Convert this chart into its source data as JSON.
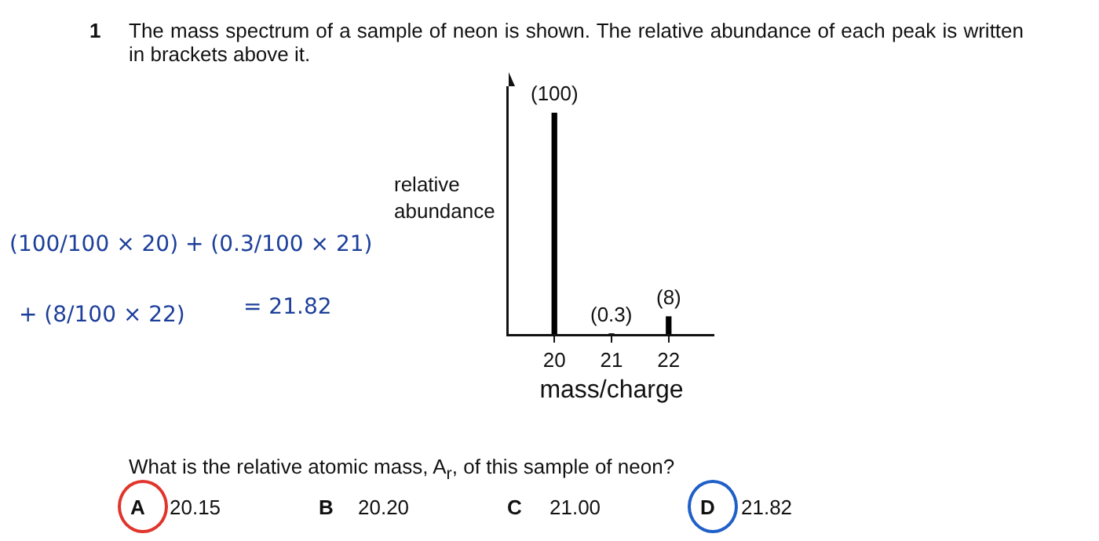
{
  "chart_data": {
    "type": "bar",
    "title": "The mass spectrum of a sample of neon is shown. The relative abundance of each peak is written in brackets above it.",
    "x": [
      20,
      21,
      22
    ],
    "values": [
      100,
      0.3,
      8
    ],
    "value_labels": [
      "(100)",
      "(0.3)",
      "(8)"
    ],
    "color": "#000000",
    "xlim": [
      19.2,
      22.8
    ],
    "xticks": [
      20,
      21,
      22
    ],
    "tick_labels": "x",
    "grid": false,
    "legend": false,
    "xlabel": "mass/charge",
    "ylabel": "relative abundance",
    "annotations": [
      "1",
      "What is the relative atomic mass, A$_{r}$, of this sample of neon?",
      "A",
      "20.15",
      "B",
      "20.20",
      "C",
      "21.00",
      "D",
      "21.82",
      "(100/100 × 20) + (0.3/100 × 21)",
      "+ (8/100 × 22)",
      "= 21.82"
    ]
  }
}
